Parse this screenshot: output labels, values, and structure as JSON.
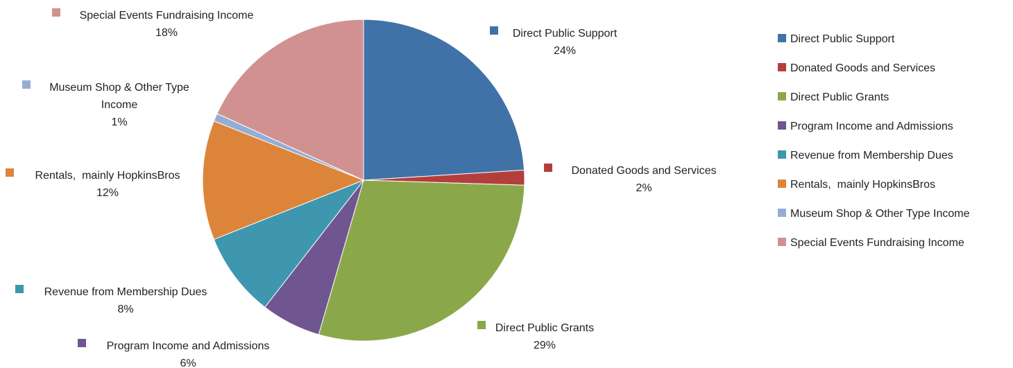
{
  "chart_data": {
    "type": "pie",
    "title": "",
    "slices": [
      {
        "name": "Direct Public Support",
        "value": 24,
        "label": "24%",
        "color": "#4072A8"
      },
      {
        "name": "Donated Goods and Services",
        "value": 1.5,
        "label": "2%",
        "color": "#B33F3D"
      },
      {
        "name": "Direct Public Grants",
        "value": 29,
        "label": "29%",
        "color": "#8AA84A"
      },
      {
        "name": "Program Income and Admissions",
        "value": 6,
        "label": "6%",
        "color": "#6F5690"
      },
      {
        "name": "Revenue from Membership Dues",
        "value": 8.5,
        "label": "8%",
        "color": "#3E97AE"
      },
      {
        "name": "Rentals,  mainly HopkinsBros",
        "value": 12,
        "label": "12%",
        "color": "#DC853A"
      },
      {
        "name": "Museum Shop & Other Type Income",
        "value": 0.8,
        "label": "1%",
        "color": "#94ADD4"
      },
      {
        "name": "Special Events Fundraising Income",
        "value": 18.2,
        "label": "18%",
        "color": "#D19190"
      }
    ],
    "legend_position": "right",
    "start_angle": "12 o'clock",
    "direction": "clockwise"
  }
}
